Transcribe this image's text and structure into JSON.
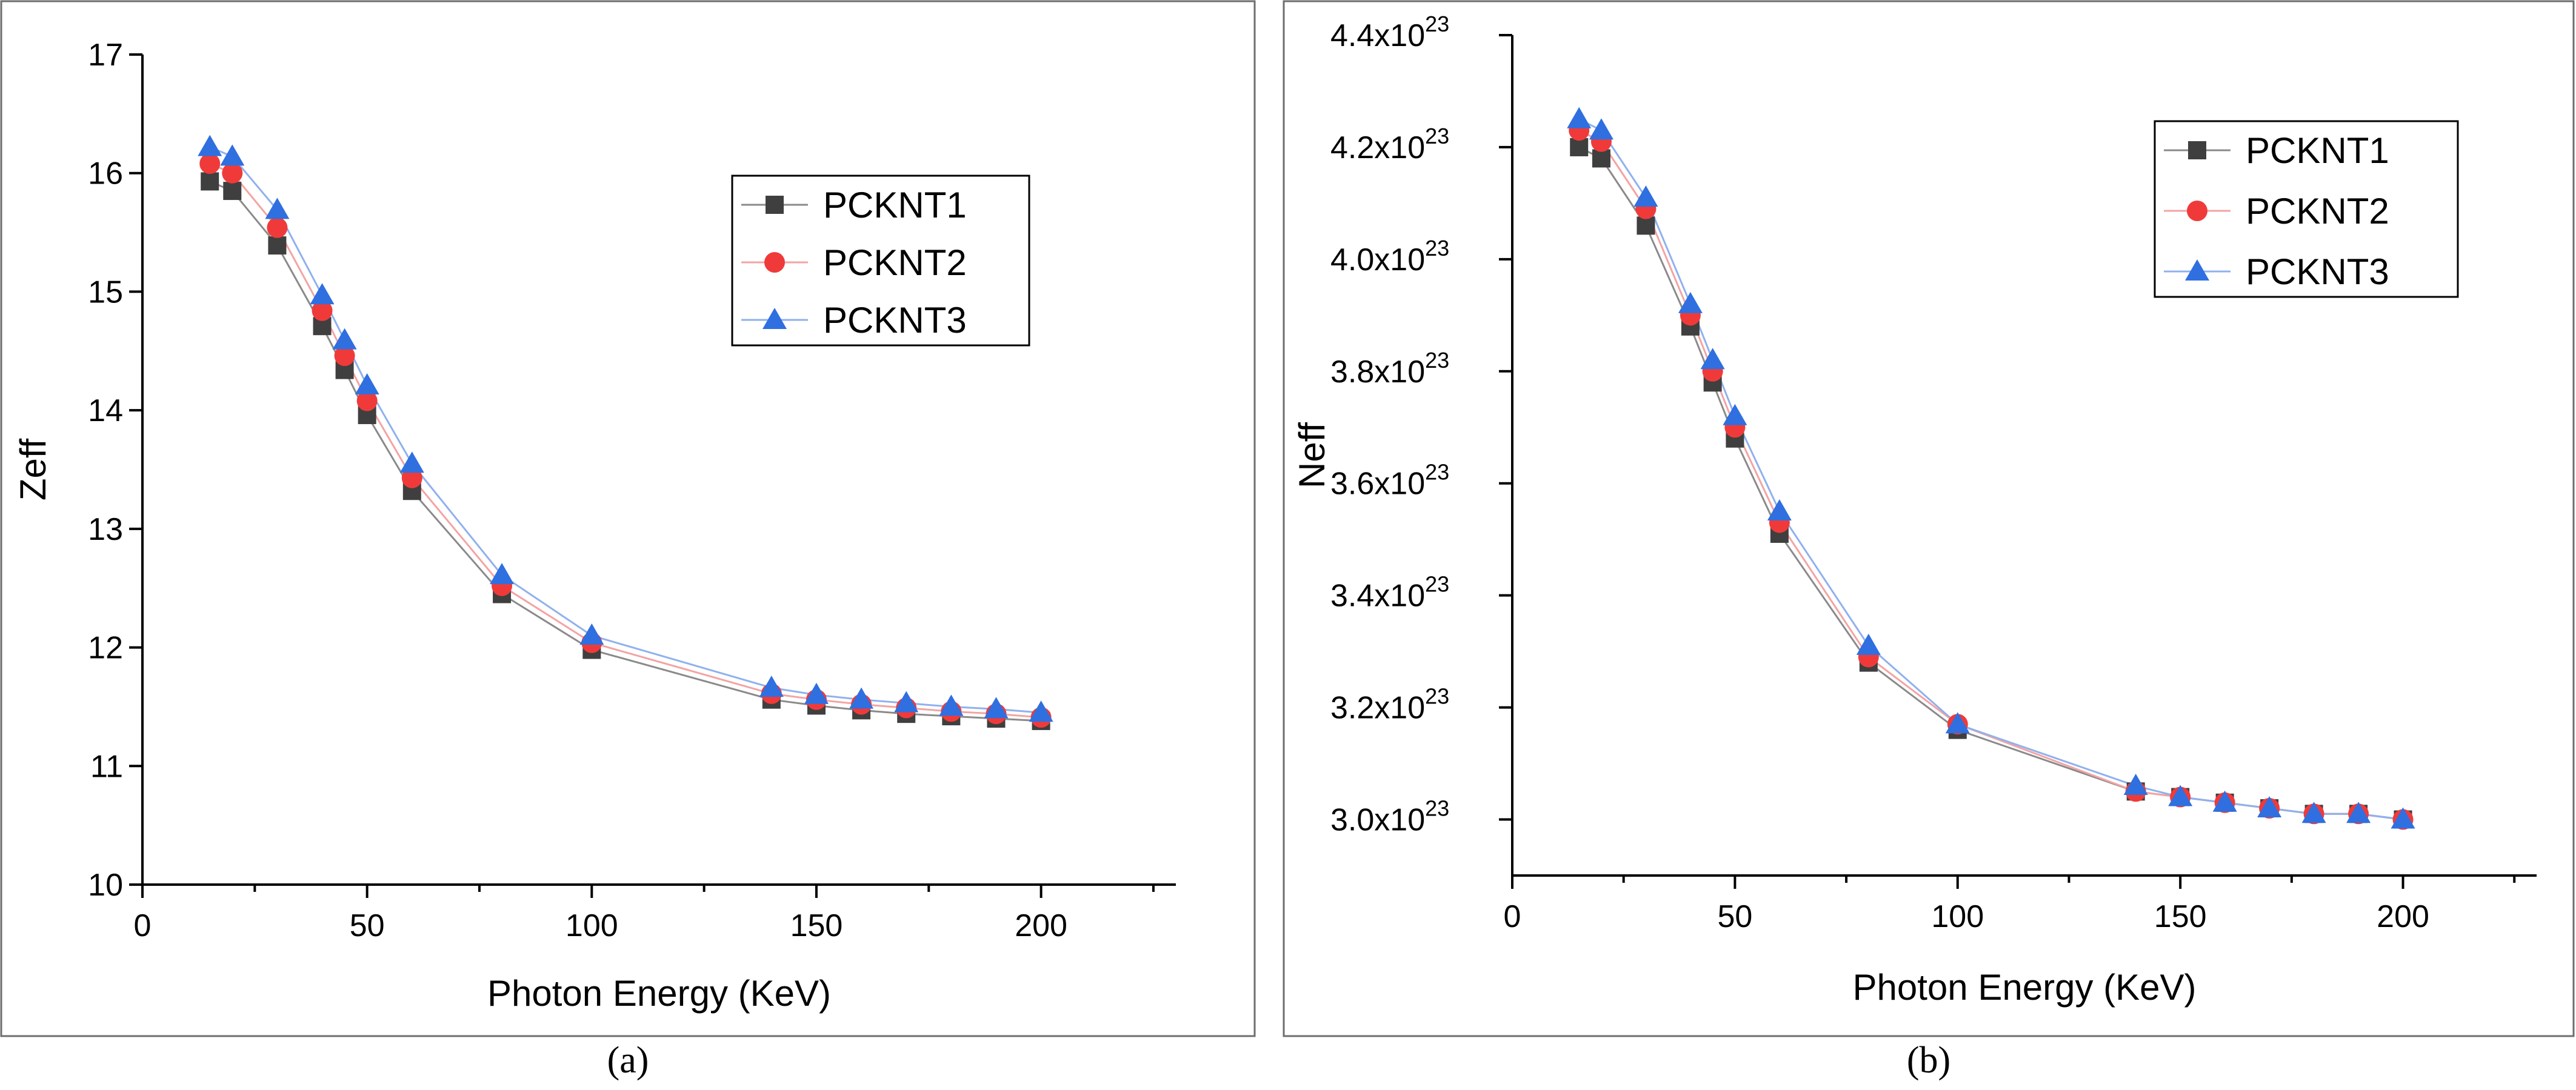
{
  "chart_data": [
    {
      "type": "line",
      "panel_label": "a",
      "caption": "(a)",
      "xlabel": "Photon Energy (KeV)",
      "ylabel": "Zeff",
      "xlim": [
        0,
        230
      ],
      "ylim": [
        10,
        17
      ],
      "xticks": [
        0,
        50,
        100,
        150,
        200
      ],
      "yticks": [
        10,
        11,
        12,
        13,
        14,
        15,
        16,
        17
      ],
      "ytick_labels": [
        "10",
        "11",
        "12",
        "13",
        "14",
        "15",
        "16",
        "17"
      ],
      "legend_position": "top-right",
      "x": [
        15,
        20,
        30,
        40,
        45,
        50,
        60,
        80,
        100,
        140,
        150,
        160,
        170,
        180,
        190,
        200
      ],
      "series": [
        {
          "name": "PCKNT1",
          "marker": "square",
          "color": "#3f3f3f",
          "line_color": "#8a8a8a",
          "values": [
            15.93,
            15.85,
            15.39,
            14.71,
            14.34,
            13.96,
            13.32,
            12.45,
            11.98,
            11.56,
            11.51,
            11.47,
            11.44,
            11.42,
            11.4,
            11.38
          ]
        },
        {
          "name": "PCKNT2",
          "marker": "circle",
          "color": "#f03a3a",
          "line_color": "#f4a3a3",
          "values": [
            16.08,
            16.0,
            15.54,
            14.84,
            14.46,
            14.08,
            13.43,
            12.52,
            12.04,
            11.61,
            11.56,
            11.52,
            11.49,
            11.46,
            11.44,
            11.41
          ]
        },
        {
          "name": "PCKNT3",
          "marker": "triangle",
          "color": "#2f6fe0",
          "line_color": "#8fb1ee",
          "values": [
            16.22,
            16.14,
            15.69,
            14.97,
            14.59,
            14.21,
            13.55,
            12.61,
            12.1,
            11.66,
            11.6,
            11.56,
            11.53,
            11.5,
            11.48,
            11.45
          ]
        }
      ]
    },
    {
      "type": "line",
      "panel_label": "b",
      "caption": "(b)",
      "xlabel": "Photon Energy (KeV)",
      "ylabel": "Neff",
      "xlim": [
        0,
        230
      ],
      "ylim": [
        2.9,
        4.4
      ],
      "xticks": [
        0,
        50,
        100,
        150,
        200
      ],
      "yticks": [
        3.0,
        3.2,
        3.4,
        3.6,
        3.8,
        4.0,
        4.2,
        4.4
      ],
      "ytick_labels": [
        "3.0x10",
        "3.2x10",
        "3.4x10",
        "3.6x10",
        "3.8x10",
        "4.0x10",
        "4.2x10",
        "4.4x10"
      ],
      "ytick_exponent": "23",
      "legend_position": "top-right",
      "x": [
        15,
        20,
        30,
        40,
        45,
        50,
        60,
        80,
        100,
        140,
        150,
        160,
        170,
        180,
        190,
        200
      ],
      "series": [
        {
          "name": "PCKNT1",
          "marker": "square",
          "color": "#3f3f3f",
          "line_color": "#8a8a8a",
          "values": [
            4.2,
            4.18,
            4.06,
            3.88,
            3.78,
            3.68,
            3.51,
            3.28,
            3.16,
            3.05,
            3.04,
            3.03,
            3.02,
            3.01,
            3.01,
            3.0
          ]
        },
        {
          "name": "PCKNT2",
          "marker": "circle",
          "color": "#f03a3a",
          "line_color": "#f4a3a3",
          "values": [
            4.23,
            4.21,
            4.09,
            3.9,
            3.8,
            3.7,
            3.53,
            3.29,
            3.17,
            3.05,
            3.04,
            3.03,
            3.02,
            3.01,
            3.01,
            3.0
          ]
        },
        {
          "name": "PCKNT3",
          "marker": "triangle",
          "color": "#2f6fe0",
          "line_color": "#8fb1ee",
          "values": [
            4.25,
            4.23,
            4.11,
            3.92,
            3.82,
            3.72,
            3.55,
            3.31,
            3.17,
            3.06,
            3.04,
            3.03,
            3.02,
            3.01,
            3.01,
            3.0
          ]
        }
      ]
    }
  ]
}
